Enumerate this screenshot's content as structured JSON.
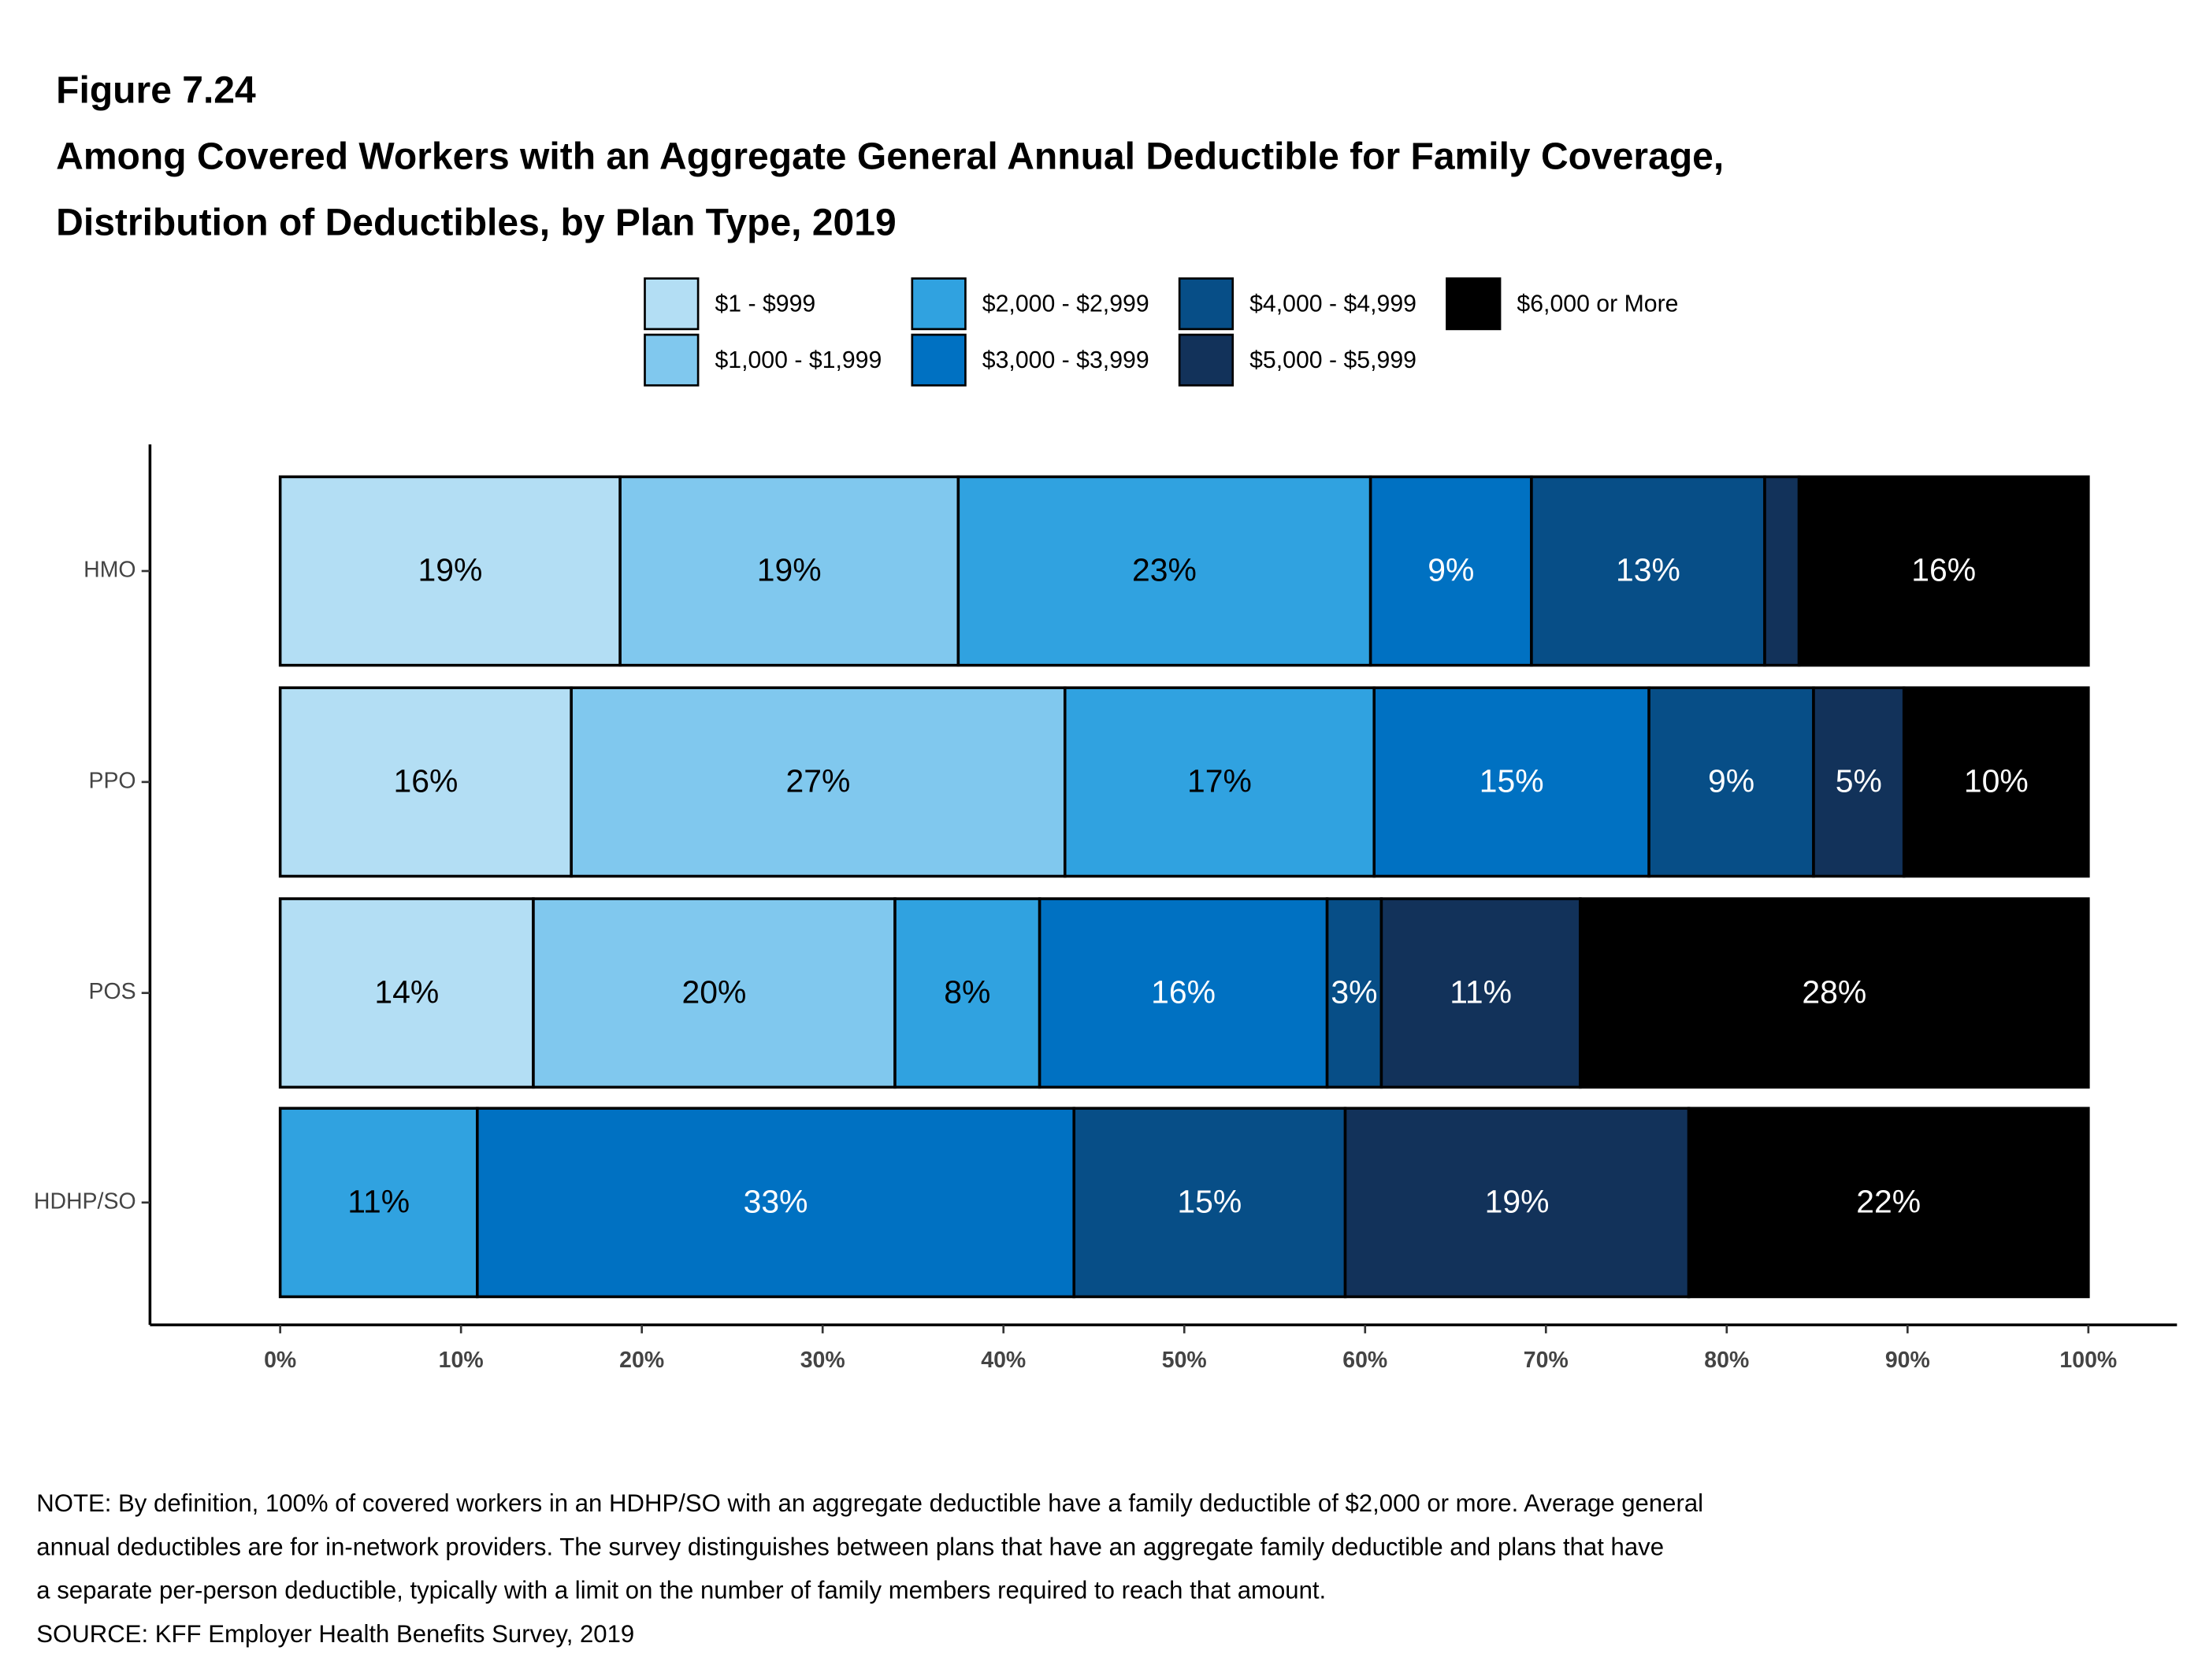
{
  "chart_data": {
    "type": "stacked-barh",
    "figure_label": "Figure 7.24",
    "title": [
      "Among Covered Workers with an Aggregate General Annual Deductible for Family Coverage,",
      "Distribution of Deductibles, by Plan Type, 2019"
    ],
    "categories": [
      "HMO",
      "PPO",
      "POS",
      "HDHP/SO"
    ],
    "series": [
      {
        "name": "$1 - $999",
        "color": "#b3def4",
        "label_color": "#000000",
        "values": [
          18.8,
          16.1,
          14.0,
          null
        ],
        "value_labels": [
          "19%",
          "16%",
          "14%",
          null
        ]
      },
      {
        "name": "$1,000 - $1,999",
        "color": "#80c8ee",
        "label_color": "#000000",
        "values": [
          18.7,
          27.3,
          20.0,
          null
        ],
        "value_labels": [
          "19%",
          "27%",
          "20%",
          null
        ]
      },
      {
        "name": "$2,000 - $2,999",
        "color": "#30a2e0",
        "label_color": "#000000",
        "values": [
          22.8,
          17.1,
          8.0,
          10.9
        ],
        "value_labels": [
          "23%",
          "17%",
          "8%",
          "11%"
        ]
      },
      {
        "name": "$3,000 - $3,999",
        "color": "#0071c2",
        "label_color": "#ffffff",
        "values": [
          8.9,
          15.2,
          15.9,
          33.0
        ],
        "value_labels": [
          "9%",
          "15%",
          "16%",
          "33%"
        ]
      },
      {
        "name": "$4,000 - $4,999",
        "color": "#074e87",
        "label_color": "#ffffff",
        "values": [
          12.9,
          9.1,
          3.0,
          15.0
        ],
        "value_labels": [
          "13%",
          "9%",
          "3%",
          "15%"
        ]
      },
      {
        "name": "$5,000 - $5,999",
        "color": "#12325a",
        "label_color": "#ffffff",
        "values": [
          1.9,
          5.0,
          11.0,
          19.0
        ],
        "value_labels": [
          null,
          "5%",
          "11%",
          "19%"
        ]
      },
      {
        "name": "$6,000 or More",
        "color": "#000000",
        "label_color": "#ffffff",
        "values": [
          16.0,
          10.2,
          28.1,
          22.1
        ],
        "value_labels": [
          "16%",
          "10%",
          "28%",
          "22%"
        ]
      }
    ],
    "xlim": [
      -7.2,
      104.9
    ],
    "xticks": [
      {
        "value": 0,
        "label": "0%"
      },
      {
        "value": 10,
        "label": "10%"
      },
      {
        "value": 20,
        "label": "20%"
      },
      {
        "value": 30,
        "label": "30%"
      },
      {
        "value": 40,
        "label": "40%"
      },
      {
        "value": 50,
        "label": "50%"
      },
      {
        "value": 60,
        "label": "60%"
      },
      {
        "value": 70,
        "label": "70%"
      },
      {
        "value": 80,
        "label": "80%"
      },
      {
        "value": 90,
        "label": "90%"
      },
      {
        "value": 100,
        "label": "100%"
      }
    ],
    "grid": false,
    "legend": "top",
    "note": [
      "NOTE: By definition, 100% of covered workers in an HDHP/SO with an aggregate deductible have a family deductible of $2,000 or more. Average general",
      "annual deductibles are for in-network providers. The survey distinguishes between plans that have an aggregate family deductible and plans that have",
      "a separate per-person deductible, typically with a limit on the number of family members required to reach that amount."
    ],
    "source": "SOURCE: KFF Employer Health Benefits Survey, 2019"
  }
}
